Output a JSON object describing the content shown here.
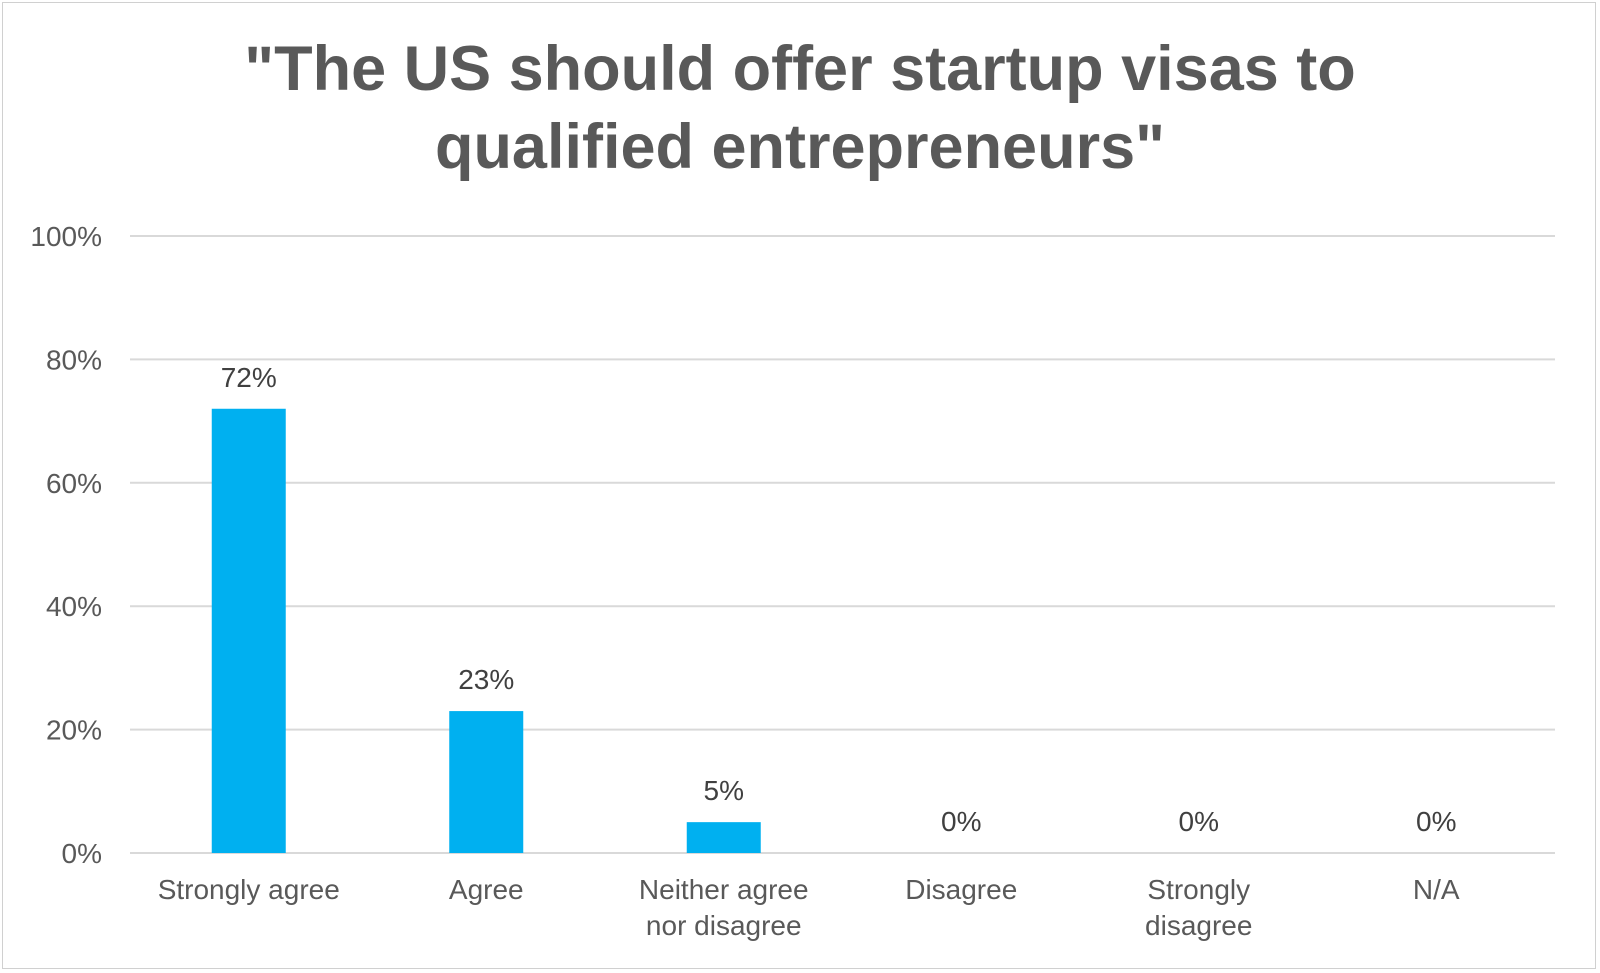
{
  "chart_data": {
    "type": "bar",
    "title_lines": [
      "\"The US should offer startup visas to",
      "qualified entrepreneurs\""
    ],
    "categories": [
      [
        "Strongly agree"
      ],
      [
        "Agree"
      ],
      [
        "Neither agree",
        "nor disagree"
      ],
      [
        "Disagree"
      ],
      [
        "Strongly",
        "disagree"
      ],
      [
        "N/A"
      ]
    ],
    "values": [
      72,
      23,
      5,
      0,
      0,
      0
    ],
    "data_labels": [
      "72%",
      "23%",
      "5%",
      "0%",
      "0%",
      "0%"
    ],
    "yticks": [
      0,
      20,
      40,
      60,
      80,
      100
    ],
    "ytick_labels": [
      "0%",
      "20%",
      "40%",
      "60%",
      "80%",
      "100%"
    ],
    "ylim": [
      0,
      100
    ],
    "grid": true,
    "colors": {
      "bar": "#00B0F0",
      "grid": "#D9D9D9",
      "text": "#595959"
    }
  }
}
